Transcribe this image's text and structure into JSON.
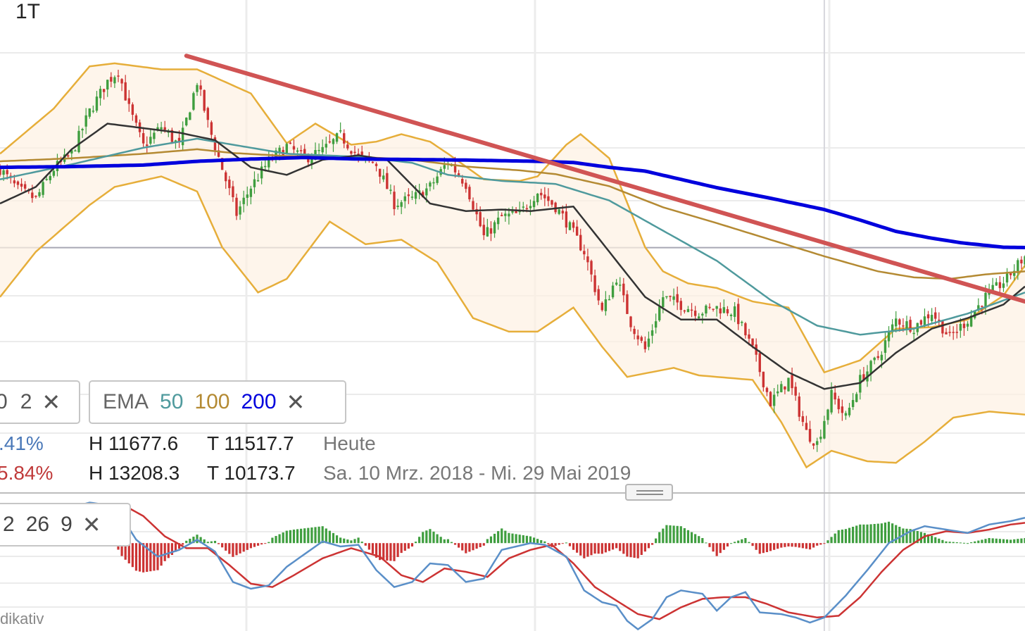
{
  "chart_data": {
    "type": "candlestick",
    "timeframe": "1T",
    "title": "",
    "xlabel": "",
    "ylabel": "",
    "indicator_label": "dikativ",
    "period_today": "Heute",
    "period_range": "Sa. 10 Mrz. 2018 - Mi. 29 Mai 2019",
    "legend": {
      "bollinger_tail": "0",
      "bollinger_dev": "2",
      "ema_label": "EMA",
      "ema_periods": [
        "50",
        "100",
        "200"
      ],
      "macd_fast": "2",
      "macd_slow": "26",
      "macd_signal": "9",
      "close_symbol": "✕"
    },
    "stats": {
      "today": {
        "change": ".41%",
        "high": "H 11677.6",
        "low": "T 11517.7"
      },
      "range": {
        "change": "5.84%",
        "high": "H 13208.3",
        "low": "T 10173.7"
      }
    },
    "colors": {
      "ema50": "#4f9a9d",
      "ema100": "#b48a33",
      "ema200": "#0000dd",
      "bollinger": "#e6ae3a",
      "trendline": "#d05454",
      "up": "#3f9e3f",
      "down": "#cc3333",
      "macd_line": "#5a8fc8",
      "signal_line": "#cc3333"
    },
    "price": {
      "ylim": [
        10050,
        13320
      ],
      "current": 11677.6,
      "ema200": [
        [
          0,
          12210
        ],
        [
          20,
          12215
        ],
        [
          40,
          12225
        ],
        [
          55,
          12250
        ],
        [
          70,
          12265
        ],
        [
          85,
          12275
        ],
        [
          100,
          12265
        ],
        [
          115,
          12262
        ],
        [
          130,
          12258
        ],
        [
          150,
          12250
        ],
        [
          160,
          12242
        ],
        [
          170,
          12210
        ],
        [
          180,
          12185
        ],
        [
          190,
          12130
        ],
        [
          200,
          12075
        ],
        [
          215,
          12005
        ],
        [
          230,
          11930
        ],
        [
          240,
          11860
        ],
        [
          250,
          11785
        ],
        [
          260,
          11740
        ],
        [
          268,
          11710
        ],
        [
          280,
          11680
        ],
        [
          286,
          11678
        ]
      ],
      "ema100": [
        [
          0,
          12250
        ],
        [
          20,
          12270
        ],
        [
          40,
          12300
        ],
        [
          55,
          12330
        ],
        [
          65,
          12305
        ],
        [
          80,
          12285
        ],
        [
          100,
          12280
        ],
        [
          115,
          12260
        ],
        [
          130,
          12215
        ],
        [
          145,
          12190
        ],
        [
          155,
          12165
        ],
        [
          170,
          12085
        ],
        [
          185,
          11945
        ],
        [
          200,
          11840
        ],
        [
          215,
          11730
        ],
        [
          230,
          11620
        ],
        [
          245,
          11520
        ],
        [
          255,
          11480
        ],
        [
          265,
          11470
        ],
        [
          275,
          11500
        ],
        [
          286,
          11520
        ]
      ],
      "ema50": [
        [
          0,
          12130
        ],
        [
          20,
          12230
        ],
        [
          40,
          12340
        ],
        [
          55,
          12400
        ],
        [
          65,
          12360
        ],
        [
          80,
          12300
        ],
        [
          100,
          12280
        ],
        [
          115,
          12240
        ],
        [
          125,
          12160
        ],
        [
          140,
          12120
        ],
        [
          155,
          12100
        ],
        [
          170,
          11990
        ],
        [
          185,
          11790
        ],
        [
          200,
          11590
        ],
        [
          215,
          11330
        ],
        [
          228,
          11160
        ],
        [
          240,
          11100
        ],
        [
          255,
          11140
        ],
        [
          270,
          11240
        ],
        [
          286,
          11380
        ]
      ],
      "ema20": [
        [
          0,
          11970
        ],
        [
          10,
          12080
        ],
        [
          20,
          12330
        ],
        [
          30,
          12500
        ],
        [
          40,
          12470
        ],
        [
          50,
          12440
        ],
        [
          60,
          12390
        ],
        [
          70,
          12210
        ],
        [
          80,
          12160
        ],
        [
          90,
          12260
        ],
        [
          100,
          12290
        ],
        [
          108,
          12260
        ],
        [
          120,
          11970
        ],
        [
          130,
          11920
        ],
        [
          140,
          11930
        ],
        [
          148,
          11920
        ],
        [
          160,
          11950
        ],
        [
          170,
          11650
        ],
        [
          180,
          11350
        ],
        [
          190,
          11200
        ],
        [
          200,
          11200
        ],
        [
          210,
          11020
        ],
        [
          220,
          10850
        ],
        [
          230,
          10740
        ],
        [
          240,
          10780
        ],
        [
          250,
          10980
        ],
        [
          260,
          11140
        ],
        [
          270,
          11210
        ],
        [
          280,
          11300
        ],
        [
          286,
          11420
        ]
      ],
      "bb_upper": [
        [
          0,
          12300
        ],
        [
          15,
          12600
        ],
        [
          25,
          12880
        ],
        [
          32,
          12900
        ],
        [
          45,
          12860
        ],
        [
          55,
          12860
        ],
        [
          70,
          12700
        ],
        [
          80,
          12370
        ],
        [
          88,
          12500
        ],
        [
          98,
          12360
        ],
        [
          105,
          12380
        ],
        [
          112,
          12430
        ],
        [
          120,
          12380
        ],
        [
          125,
          12300
        ],
        [
          135,
          12130
        ],
        [
          145,
          12120
        ],
        [
          150,
          12150
        ],
        [
          158,
          12360
        ],
        [
          162,
          12430
        ],
        [
          170,
          12270
        ],
        [
          180,
          11680
        ],
        [
          185,
          11520
        ],
        [
          192,
          11440
        ],
        [
          200,
          11410
        ],
        [
          210,
          11320
        ],
        [
          220,
          11280
        ],
        [
          230,
          10850
        ],
        [
          240,
          10930
        ],
        [
          250,
          11140
        ],
        [
          260,
          11150
        ],
        [
          270,
          11200
        ],
        [
          280,
          11360
        ],
        [
          286,
          11560
        ]
      ],
      "bb_lower": [
        [
          0,
          11350
        ],
        [
          10,
          11650
        ],
        [
          25,
          11960
        ],
        [
          32,
          12080
        ],
        [
          45,
          12150
        ],
        [
          55,
          12050
        ],
        [
          62,
          11680
        ],
        [
          72,
          11380
        ],
        [
          80,
          11470
        ],
        [
          92,
          11850
        ],
        [
          102,
          11700
        ],
        [
          112,
          11730
        ],
        [
          122,
          11580
        ],
        [
          132,
          11210
        ],
        [
          142,
          11120
        ],
        [
          150,
          11120
        ],
        [
          160,
          11280
        ],
        [
          168,
          11020
        ],
        [
          175,
          10820
        ],
        [
          188,
          10880
        ],
        [
          195,
          10830
        ],
        [
          210,
          10800
        ],
        [
          218,
          10520
        ],
        [
          225,
          10220
        ],
        [
          232,
          10330
        ],
        [
          242,
          10260
        ],
        [
          250,
          10250
        ],
        [
          258,
          10390
        ],
        [
          266,
          10550
        ],
        [
          276,
          10590
        ],
        [
          286,
          10570
        ]
      ],
      "closes": [
        [
          0,
          12200
        ],
        [
          5,
          12060
        ],
        [
          10,
          12000
        ],
        [
          15,
          12200
        ],
        [
          20,
          12300
        ],
        [
          25,
          12580
        ],
        [
          30,
          12780
        ],
        [
          33,
          12850
        ],
        [
          36,
          12600
        ],
        [
          40,
          12350
        ],
        [
          45,
          12480
        ],
        [
          50,
          12350
        ],
        [
          55,
          12780
        ],
        [
          58,
          12500
        ],
        [
          62,
          12200
        ],
        [
          66,
          11900
        ],
        [
          70,
          12080
        ],
        [
          75,
          12250
        ],
        [
          80,
          12350
        ],
        [
          85,
          12270
        ],
        [
          90,
          12320
        ],
        [
          95,
          12420
        ],
        [
          100,
          12280
        ],
        [
          105,
          12230
        ],
        [
          110,
          11970
        ],
        [
          115,
          12000
        ],
        [
          120,
          12080
        ],
        [
          125,
          12250
        ],
        [
          130,
          12100
        ],
        [
          135,
          11750
        ],
        [
          140,
          11880
        ],
        [
          145,
          11900
        ],
        [
          150,
          12050
        ],
        [
          155,
          11950
        ],
        [
          158,
          11850
        ],
        [
          163,
          11650
        ],
        [
          168,
          11250
        ],
        [
          172,
          11480
        ],
        [
          176,
          11180
        ],
        [
          180,
          11000
        ],
        [
          185,
          11350
        ],
        [
          190,
          11300
        ],
        [
          195,
          11250
        ],
        [
          200,
          11280
        ],
        [
          205,
          11250
        ],
        [
          210,
          11000
        ],
        [
          215,
          10650
        ],
        [
          220,
          10800
        ],
        [
          225,
          10450
        ],
        [
          228,
          10380
        ],
        [
          232,
          10700
        ],
        [
          236,
          10550
        ],
        [
          240,
          10800
        ],
        [
          245,
          10950
        ],
        [
          250,
          11200
        ],
        [
          255,
          11150
        ],
        [
          260,
          11250
        ],
        [
          265,
          11080
        ],
        [
          270,
          11200
        ],
        [
          275,
          11350
        ],
        [
          280,
          11450
        ],
        [
          286,
          11620
        ]
      ],
      "trendline": [
        [
          52,
          12950
        ],
        [
          286,
          11320
        ]
      ],
      "crosshair_x": 230
    },
    "macd": {
      "ylim": [
        -520,
        280
      ],
      "macd_line": [
        [
          0,
          60
        ],
        [
          10,
          100
        ],
        [
          18,
          200
        ],
        [
          25,
          240
        ],
        [
          32,
          220
        ],
        [
          38,
          20
        ],
        [
          44,
          -80
        ],
        [
          50,
          -40
        ],
        [
          55,
          20
        ],
        [
          60,
          -50
        ],
        [
          65,
          -230
        ],
        [
          70,
          -270
        ],
        [
          75,
          -250
        ],
        [
          80,
          -140
        ],
        [
          90,
          10
        ],
        [
          95,
          -20
        ],
        [
          100,
          -10
        ],
        [
          105,
          -160
        ],
        [
          110,
          -260
        ],
        [
          115,
          -230
        ],
        [
          120,
          -120
        ],
        [
          125,
          -130
        ],
        [
          130,
          -230
        ],
        [
          135,
          -210
        ],
        [
          140,
          -40
        ],
        [
          148,
          0
        ],
        [
          152,
          -10
        ],
        [
          158,
          -80
        ],
        [
          163,
          -280
        ],
        [
          168,
          -350
        ],
        [
          172,
          -370
        ],
        [
          175,
          -460
        ],
        [
          178,
          -510
        ],
        [
          182,
          -450
        ],
        [
          186,
          -320
        ],
        [
          190,
          -280
        ],
        [
          196,
          -300
        ],
        [
          200,
          -400
        ],
        [
          204,
          -320
        ],
        [
          208,
          -290
        ],
        [
          212,
          -410
        ],
        [
          218,
          -420
        ],
        [
          222,
          -440
        ],
        [
          226,
          -470
        ],
        [
          230,
          -440
        ],
        [
          236,
          -310
        ],
        [
          242,
          -160
        ],
        [
          248,
          0
        ],
        [
          254,
          70
        ],
        [
          258,
          100
        ],
        [
          264,
          80
        ],
        [
          270,
          60
        ],
        [
          276,
          110
        ],
        [
          282,
          130
        ],
        [
          286,
          150
        ]
      ],
      "signal_line": [
        [
          0,
          50
        ],
        [
          10,
          80
        ],
        [
          18,
          140
        ],
        [
          25,
          190
        ],
        [
          34,
          230
        ],
        [
          40,
          160
        ],
        [
          46,
          40
        ],
        [
          52,
          -30
        ],
        [
          58,
          -30
        ],
        [
          64,
          -130
        ],
        [
          70,
          -240
        ],
        [
          76,
          -260
        ],
        [
          82,
          -190
        ],
        [
          90,
          -90
        ],
        [
          98,
          -30
        ],
        [
          106,
          -80
        ],
        [
          112,
          -190
        ],
        [
          118,
          -230
        ],
        [
          124,
          -150
        ],
        [
          130,
          -170
        ],
        [
          136,
          -200
        ],
        [
          142,
          -90
        ],
        [
          148,
          -40
        ],
        [
          154,
          -10
        ],
        [
          160,
          -120
        ],
        [
          166,
          -260
        ],
        [
          172,
          -340
        ],
        [
          178,
          -420
        ],
        [
          184,
          -450
        ],
        [
          190,
          -380
        ],
        [
          196,
          -330
        ],
        [
          202,
          -320
        ],
        [
          208,
          -320
        ],
        [
          214,
          -360
        ],
        [
          220,
          -410
        ],
        [
          228,
          -440
        ],
        [
          234,
          -430
        ],
        [
          240,
          -320
        ],
        [
          246,
          -170
        ],
        [
          252,
          -40
        ],
        [
          258,
          40
        ],
        [
          264,
          70
        ],
        [
          270,
          60
        ],
        [
          276,
          80
        ],
        [
          282,
          110
        ],
        [
          286,
          120
        ]
      ]
    }
  }
}
